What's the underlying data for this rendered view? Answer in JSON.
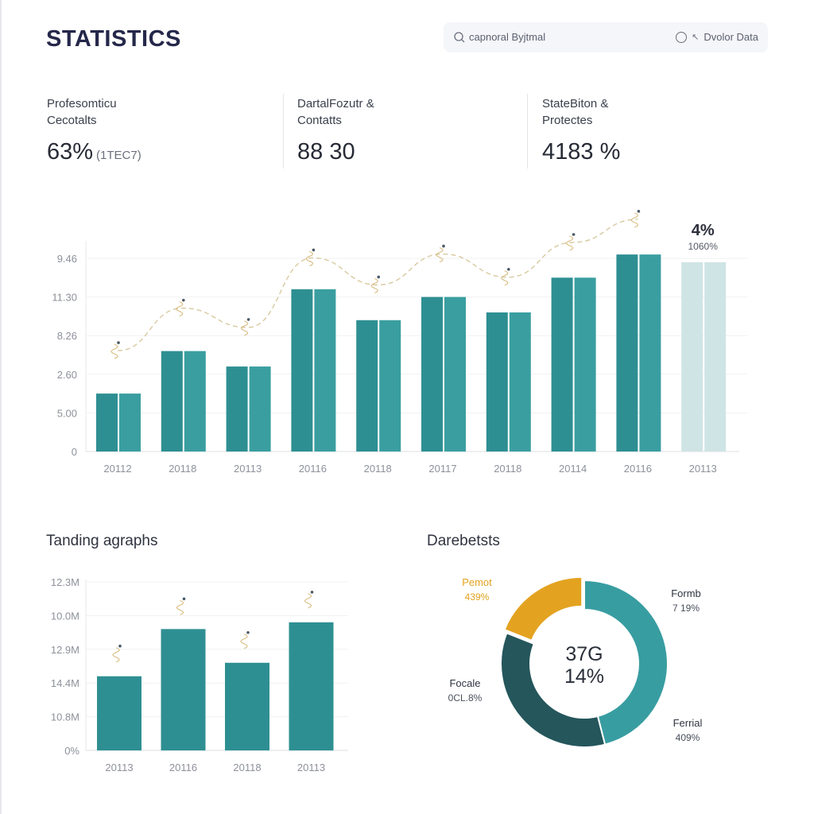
{
  "header": {
    "title": "STATISTICS",
    "search": {
      "icon": "search-icon",
      "placeholder": "capnoral Byjtmal",
      "filter_icon": "circle-icon",
      "filter_arrow_icon": "arrow-icon",
      "filter_label": "Dvolor Data"
    }
  },
  "kpis": [
    {
      "label": "Profesomticu\nCecotalts",
      "value": "63%",
      "sub": "(1TEC7)"
    },
    {
      "label": "DartalFozutr &\nContatts",
      "value": "88 30",
      "sub": ""
    },
    {
      "label": "StateBiton &\nProtectes",
      "value": "4183 %",
      "sub": ""
    }
  ],
  "colors": {
    "bar_dark": "#2e8f92",
    "bar_light": "#3a9ea0",
    "bar_faded": "#cfe4e5",
    "trend_line": "#d8c9a0",
    "donut_teal": "#389da1",
    "donut_dark": "#24565c",
    "donut_gold": "#e3a321",
    "grid": "#f0f1f3",
    "axis_text": "#8d919a"
  },
  "chart_data": [
    {
      "type": "bar",
      "title": "",
      "categories": [
        "20112",
        "20118",
        "20113",
        "20116",
        "20118",
        "20117",
        "20118",
        "20114",
        "20116",
        "20113"
      ],
      "series": [
        {
          "name": "bars",
          "values": [
            1.5,
            2.6,
            2.2,
            4.2,
            3.4,
            4.0,
            3.6,
            4.5,
            5.1,
            4.9
          ]
        },
        {
          "name": "trend",
          "values": [
            2.2,
            3.3,
            2.8,
            4.6,
            3.9,
            4.7,
            4.1,
            5.0,
            5.6,
            null
          ]
        }
      ],
      "faded_last": true,
      "ytick_labels": [
        "0",
        "5.00",
        "2.60",
        "8.26",
        "11.30",
        "9.46"
      ],
      "ylim": [
        0,
        5
      ],
      "callout": {
        "value": "4%",
        "sub": "1060%"
      },
      "xlabel": "",
      "ylabel": "",
      "grid": true
    },
    {
      "type": "bar",
      "title": "Tanding agraphs",
      "categories": [
        "20113",
        "20116",
        "20118",
        "20113"
      ],
      "values": [
        2.2,
        3.6,
        2.6,
        3.8
      ],
      "ytick_labels": [
        "0%",
        "10.8M",
        "14.4M",
        "12.9M",
        "10.0M",
        "12.3M"
      ],
      "ylim": [
        0,
        5
      ],
      "xlabel": "",
      "ylabel": "",
      "grid": true
    },
    {
      "type": "pie",
      "title": "Darebetsts",
      "center_label": [
        "37G",
        "14%"
      ],
      "slices": [
        {
          "name": "Formb",
          "label": "7 19%",
          "value": 46,
          "color_key": "donut_teal",
          "label_side": "top-right"
        },
        {
          "name": "Ferrial",
          "label": "409%",
          "value": 0,
          "color_key": "donut_teal",
          "label_side": "bottom-right"
        },
        {
          "name": "Focale",
          "label": "0CL.8%",
          "value": 35,
          "color_key": "donut_dark",
          "label_side": "left"
        },
        {
          "name": "Pemot",
          "label": "439%",
          "value": 19,
          "color_key": "donut_gold",
          "label_side": "top-left"
        }
      ]
    }
  ]
}
